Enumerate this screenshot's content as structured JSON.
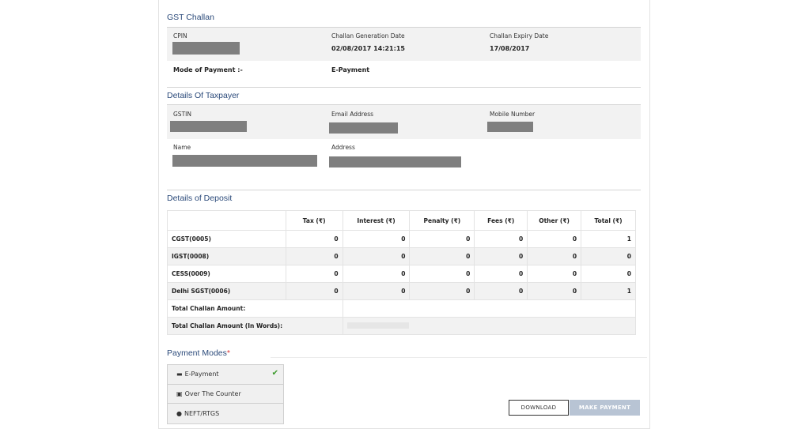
{
  "challan": {
    "title": "GST Challan",
    "cpin_label": "CPIN",
    "gen_date_label": "Challan Generation Date",
    "gen_date": "02/08/2017 14:21:15",
    "expiry_label": "Challan Expiry Date",
    "expiry_date": "17/08/2017",
    "mode_label": "Mode of Payment :-",
    "mode_value": "E-Payment"
  },
  "taxpayer": {
    "title": "Details Of Taxpayer",
    "gstin_label": "GSTIN",
    "email_label": "Email Address",
    "mobile_label": "Mobile Number",
    "name_label": "Name",
    "address_label": "Address"
  },
  "deposit": {
    "title": "Details of Deposit",
    "headers": [
      "",
      "Tax (₹)",
      "Interest (₹)",
      "Penalty (₹)",
      "Fees (₹)",
      "Other (₹)",
      "Total (₹)"
    ],
    "rows": [
      [
        "CGST(0005)",
        "0",
        "0",
        "0",
        "0",
        "0",
        "1"
      ],
      [
        "IGST(0008)",
        "0",
        "0",
        "0",
        "0",
        "0",
        "0"
      ],
      [
        "CESS(0009)",
        "0",
        "0",
        "0",
        "0",
        "0",
        "0"
      ],
      [
        "Delhi SGST(0006)",
        "0",
        "0",
        "0",
        "0",
        "0",
        "1"
      ]
    ],
    "total_label": "Total Challan Amount:",
    "total_words_label": "Total Challan Amount (In Words):"
  },
  "payment": {
    "title": "Payment Modes",
    "required": "*",
    "modes": [
      {
        "label": "E-Payment",
        "icon": "credit-card-icon",
        "selected": true
      },
      {
        "label": "Over The Counter",
        "icon": "cash-icon"
      },
      {
        "label": "NEFT/RTGS",
        "icon": "globe-icon"
      }
    ]
  },
  "buttons": {
    "download": "DOWNLOAD",
    "make_payment": "MAKE PAYMENT"
  },
  "colors": {
    "heading": "#2b4a7a",
    "check": "#3a9a2a",
    "disabled_button": "#b8c4d4"
  }
}
